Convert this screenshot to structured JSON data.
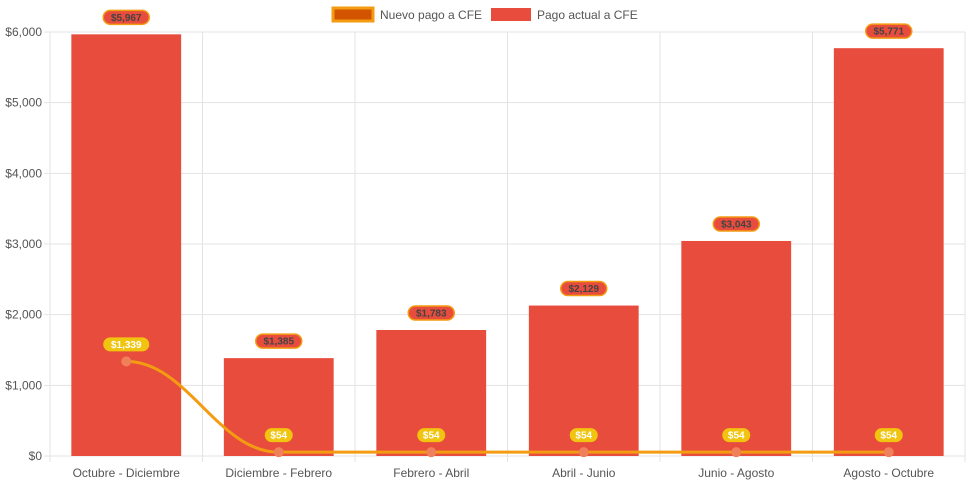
{
  "chart_data": {
    "type": "bar",
    "title": "",
    "xlabel": "",
    "ylabel": "",
    "categories": [
      "Octubre - Diciembre",
      "Diciembre - Febrero",
      "Febrero - Abril",
      "Abril - Junio",
      "Junio - Agosto",
      "Agosto - Octubre"
    ],
    "ylim": [
      0,
      6000
    ],
    "yticks": [
      0,
      1000,
      2000,
      3000,
      4000,
      5000,
      6000
    ],
    "ytick_labels": [
      "$0",
      "$1,000",
      "$2,000",
      "$3,000",
      "$4,000",
      "$5,000",
      "$6,000"
    ],
    "grid": true,
    "legend_position": "top-center",
    "series": [
      {
        "name": "Nuevo pago a CFE",
        "kind": "line",
        "color": "#f39c12",
        "marker_color": "#f0805a",
        "values": [
          1339,
          54,
          54,
          54,
          54,
          54
        ],
        "labels": [
          "$1,339",
          "$54",
          "$54",
          "$54",
          "$54",
          "$54"
        ],
        "label_bg": "#f1c40f",
        "label_text_color": "#ffffff"
      },
      {
        "name": "Pago actual a CFE",
        "kind": "bar",
        "color": "#e74c3c",
        "values": [
          5967,
          1385,
          1783,
          2129,
          3043,
          5771
        ],
        "labels": [
          "$5,967",
          "$1,385",
          "$1,783",
          "$2,129",
          "$3,043",
          "$5,771"
        ],
        "label_bg": "#e74c3c",
        "label_border": "#f39c12",
        "label_text_color": "#444444"
      }
    ]
  }
}
